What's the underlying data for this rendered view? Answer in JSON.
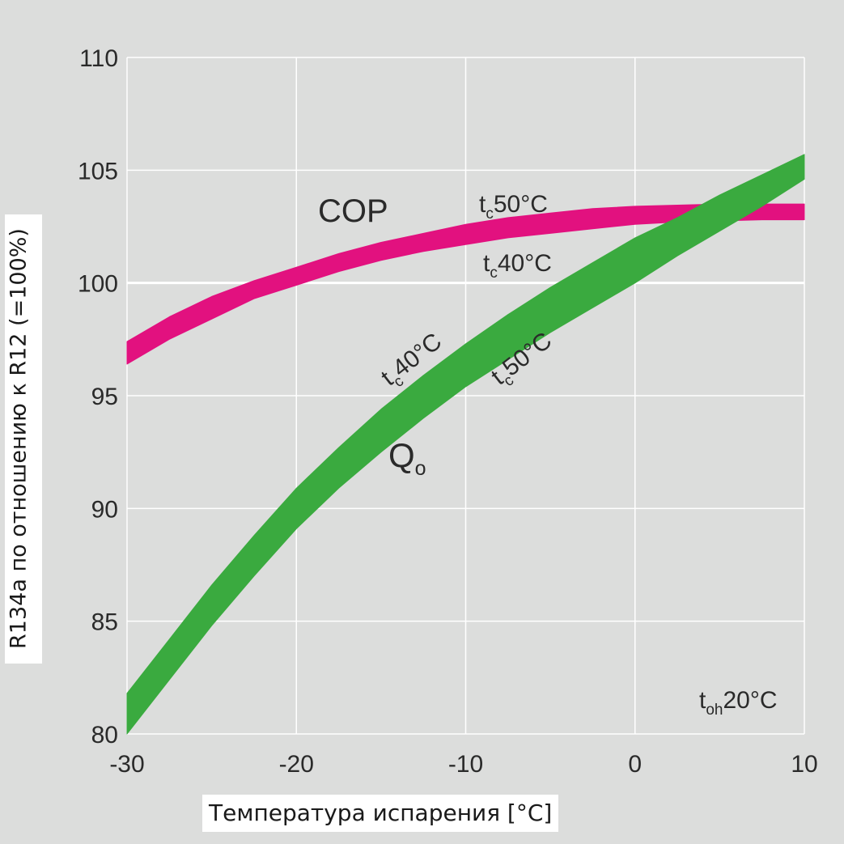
{
  "chart_data": {
    "type": "line",
    "xlabel": "Температура испарения [°C]",
    "ylabel": "R134a по отношению к R12 (=100%)",
    "xlim": [
      -30,
      10
    ],
    "ylim": [
      80,
      110
    ],
    "x_ticks": [
      -30,
      -20,
      -10,
      0,
      10
    ],
    "y_ticks": [
      80,
      85,
      90,
      95,
      100,
      105,
      110
    ],
    "grid": true,
    "reference_line": 100,
    "series": [
      {
        "name": "COP",
        "color": "#e2117f",
        "band": true,
        "x": [
          -30,
          -27.5,
          -25,
          -22.5,
          -20,
          -17.5,
          -15,
          -12.5,
          -10,
          -7.5,
          -5,
          -2.5,
          0,
          2.5,
          5,
          7.5,
          10
        ],
        "upper": [
          97.4,
          98.5,
          99.4,
          100.1,
          100.7,
          101.3,
          101.8,
          102.2,
          102.6,
          102.9,
          103.1,
          103.3,
          103.4,
          103.45,
          103.5,
          103.5,
          103.5
        ],
        "lower": [
          96.4,
          97.5,
          98.4,
          99.3,
          99.9,
          100.5,
          101.0,
          101.4,
          101.7,
          102.0,
          102.2,
          102.4,
          102.6,
          102.7,
          102.75,
          102.8,
          102.8
        ]
      },
      {
        "name": "Q",
        "subscript": "o",
        "color": "#3aaa3f",
        "band": true,
        "x": [
          -30,
          -27.5,
          -25,
          -22.5,
          -20,
          -17.5,
          -15,
          -12.5,
          -10,
          -7.5,
          -5,
          -2.5,
          0,
          2.5,
          5,
          7.5,
          10
        ],
        "upper": [
          81.8,
          84.2,
          86.6,
          88.8,
          90.9,
          92.7,
          94.4,
          95.9,
          97.3,
          98.6,
          99.8,
          100.9,
          102.0,
          102.9,
          103.9,
          104.8,
          105.7
        ],
        "lower": [
          80.0,
          82.4,
          84.8,
          87.0,
          89.1,
          90.9,
          92.5,
          94.0,
          95.4,
          96.6,
          97.8,
          98.9,
          100.0,
          101.2,
          102.3,
          103.4,
          104.6
        ]
      }
    ],
    "annotations": [
      {
        "id": "cop",
        "text": "COP"
      },
      {
        "id": "cop_tc50",
        "text": "t",
        "sub": "c",
        "value": "50°C"
      },
      {
        "id": "cop_tc40",
        "text": "t",
        "sub": "c",
        "value": "40°C"
      },
      {
        "id": "q_tc40",
        "text": "t",
        "sub": "c",
        "value": "40°C"
      },
      {
        "id": "q_tc50",
        "text": "t",
        "sub": "c",
        "value": "50°C"
      },
      {
        "id": "qo",
        "text": "Q",
        "sub": "o"
      },
      {
        "id": "toh",
        "text": "t",
        "sub": "oh",
        "value": "20°C"
      }
    ]
  }
}
